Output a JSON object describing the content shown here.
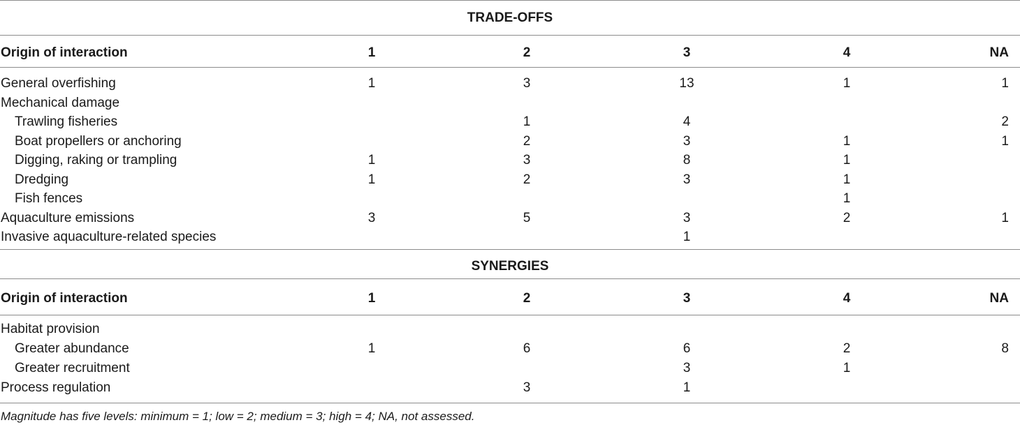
{
  "columns": [
    "Origin of interaction",
    "1",
    "2",
    "3",
    "4",
    "NA"
  ],
  "tradeoffs": {
    "title": "TRADE-OFFS",
    "rows": [
      {
        "label": "General overfishing",
        "indent": false,
        "values": [
          "1",
          "3",
          "13",
          "1",
          "1"
        ]
      },
      {
        "label": "Mechanical damage",
        "indent": false,
        "values": [
          "",
          "",
          "",
          "",
          ""
        ]
      },
      {
        "label": "Trawling fisheries",
        "indent": true,
        "values": [
          "",
          "1",
          "4",
          "",
          "2"
        ]
      },
      {
        "label": "Boat propellers or anchoring",
        "indent": true,
        "values": [
          "",
          "2",
          "3",
          "1",
          "1"
        ]
      },
      {
        "label": "Digging, raking or trampling",
        "indent": true,
        "values": [
          "1",
          "3",
          "8",
          "1",
          ""
        ]
      },
      {
        "label": "Dredging",
        "indent": true,
        "values": [
          "1",
          "2",
          "3",
          "1",
          ""
        ]
      },
      {
        "label": "Fish fences",
        "indent": true,
        "values": [
          "",
          "",
          "",
          "1",
          ""
        ]
      },
      {
        "label": "Aquaculture emissions",
        "indent": false,
        "values": [
          "3",
          "5",
          "3",
          "2",
          "1"
        ]
      },
      {
        "label": "Invasive aquaculture-related species",
        "indent": false,
        "values": [
          "",
          "",
          "1",
          "",
          ""
        ]
      }
    ]
  },
  "synergies": {
    "title": "SYNERGIES",
    "rows": [
      {
        "label": "Habitat provision",
        "indent": false,
        "values": [
          "",
          "",
          "",
          "",
          ""
        ]
      },
      {
        "label": "Greater abundance",
        "indent": true,
        "values": [
          "1",
          "6",
          "6",
          "2",
          "8"
        ]
      },
      {
        "label": "Greater recruitment",
        "indent": true,
        "values": [
          "",
          "",
          "3",
          "1",
          ""
        ]
      },
      {
        "label": "Process regulation",
        "indent": false,
        "values": [
          "",
          "3",
          "1",
          "",
          ""
        ]
      }
    ]
  },
  "footnote": "Magnitude has five levels: minimum = 1; low = 2; medium = 3; high = 4; NA, not assessed."
}
